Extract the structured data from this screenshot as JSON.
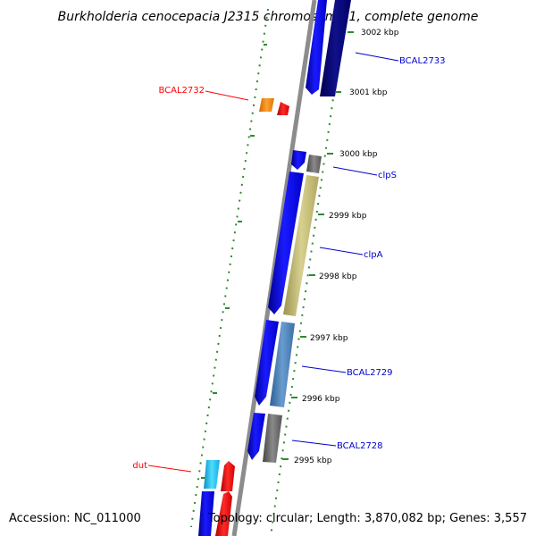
{
  "title": "Burkholderia cenocepacia J2315 chromosome 1, complete genome",
  "footer": {
    "accession": "Accession: NC_011000",
    "summary": "Topology: circular; Length: 3,870,082 bp; Genes: 3,557"
  },
  "ticks": [
    {
      "label": "3002 kbp"
    },
    {
      "label": "3001 kbp"
    },
    {
      "label": "3000 kbp"
    },
    {
      "label": "2999 kbp"
    },
    {
      "label": "2998 kbp"
    },
    {
      "label": "2997 kbp"
    },
    {
      "label": "2996 kbp"
    },
    {
      "label": "2995 kbp"
    }
  ],
  "genes": [
    {
      "name": "BCAL2733",
      "color": "#0000cd"
    },
    {
      "name": "BCAL2732",
      "color": "#ff0000"
    },
    {
      "name": "clpS",
      "color": "#0000cd"
    },
    {
      "name": "clpA",
      "color": "#0000cd"
    },
    {
      "name": "BCAL2729",
      "color": "#0000cd"
    },
    {
      "name": "BCAL2728",
      "color": "#0000cd"
    },
    {
      "name": "dut",
      "color": "#ff0000"
    }
  ],
  "colors": {
    "backbone": "#8c8c8c",
    "ticks": "#2e8b2e",
    "blue": "#0000ff",
    "navy": "#000080",
    "khaki": "#c8c080",
    "steel": "#4a7fb5",
    "gray": "#707070",
    "orange": "#ff8c00",
    "red": "#ff0000",
    "cyan": "#1ec8f0"
  }
}
